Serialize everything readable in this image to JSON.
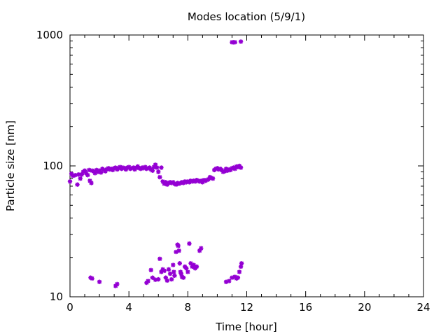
{
  "chart_data": {
    "type": "scatter",
    "title": "Modes location (5/9/1)",
    "xlabel": "Time [hour]",
    "ylabel": "Particle size [nm]",
    "xlim": [
      0,
      24
    ],
    "ylim": [
      10,
      1000
    ],
    "y_scale": "log",
    "grid": false,
    "legend": "none",
    "marker_color": "#9400d3",
    "x_ticks": [
      0,
      4,
      8,
      12,
      16,
      20,
      24
    ],
    "x_tick_labels": [
      "0",
      "4",
      "8",
      "12",
      "16",
      "20",
      "24"
    ],
    "y_ticks": [
      10,
      100,
      1000
    ],
    "y_tick_labels": [
      "10",
      "100",
      "1000"
    ],
    "series": [
      {
        "points": [
          [
            0.0,
            76
          ],
          [
            0.1,
            87
          ],
          [
            0.2,
            84
          ],
          [
            0.35,
            85
          ],
          [
            0.5,
            72
          ],
          [
            0.6,
            86
          ],
          [
            0.7,
            80
          ],
          [
            0.8,
            86
          ],
          [
            0.9,
            90
          ],
          [
            1.0,
            92
          ],
          [
            1.1,
            88
          ],
          [
            1.2,
            85
          ],
          [
            1.3,
            93
          ],
          [
            1.35,
            77
          ],
          [
            1.45,
            74
          ],
          [
            1.5,
            92
          ],
          [
            1.6,
            91
          ],
          [
            1.7,
            88
          ],
          [
            1.8,
            93
          ],
          [
            1.9,
            90
          ],
          [
            2.0,
            92
          ],
          [
            2.1,
            89
          ],
          [
            2.2,
            95
          ],
          [
            2.3,
            93
          ],
          [
            2.4,
            91
          ],
          [
            2.5,
            94
          ],
          [
            2.6,
            96
          ],
          [
            2.7,
            94
          ],
          [
            2.8,
            95
          ],
          [
            2.9,
            93
          ],
          [
            3.0,
            96
          ],
          [
            3.1,
            97
          ],
          [
            3.2,
            94
          ],
          [
            3.3,
            96
          ],
          [
            3.4,
            98
          ],
          [
            3.5,
            95
          ],
          [
            3.6,
            97
          ],
          [
            3.7,
            96
          ],
          [
            3.8,
            94
          ],
          [
            3.9,
            97
          ],
          [
            4.0,
            98
          ],
          [
            4.1,
            95
          ],
          [
            4.2,
            96
          ],
          [
            4.3,
            97
          ],
          [
            4.4,
            94
          ],
          [
            4.5,
            97
          ],
          [
            4.6,
            99
          ],
          [
            4.7,
            96
          ],
          [
            4.8,
            95
          ],
          [
            4.9,
            97
          ],
          [
            5.0,
            96
          ],
          [
            5.1,
            98
          ],
          [
            5.2,
            95
          ],
          [
            5.3,
            96
          ],
          [
            5.4,
            97
          ],
          [
            5.5,
            94
          ],
          [
            5.6,
            92
          ],
          [
            5.7,
            98
          ],
          [
            5.8,
            102
          ],
          [
            5.9,
            97
          ],
          [
            6.0,
            90
          ],
          [
            6.1,
            82
          ],
          [
            6.2,
            97
          ],
          [
            6.3,
            76
          ],
          [
            6.4,
            73
          ],
          [
            6.5,
            75
          ],
          [
            6.6,
            72
          ],
          [
            6.7,
            74
          ],
          [
            6.8,
            75
          ],
          [
            6.9,
            74
          ],
          [
            7.0,
            75
          ],
          [
            7.1,
            73
          ],
          [
            7.2,
            72
          ],
          [
            7.3,
            74
          ],
          [
            7.4,
            73
          ],
          [
            7.5,
            74
          ],
          [
            7.6,
            75
          ],
          [
            7.7,
            74
          ],
          [
            7.8,
            76
          ],
          [
            7.9,
            75
          ],
          [
            8.0,
            76
          ],
          [
            8.1,
            75
          ],
          [
            8.2,
            77
          ],
          [
            8.3,
            76
          ],
          [
            8.4,
            77
          ],
          [
            8.5,
            76
          ],
          [
            8.6,
            78
          ],
          [
            8.7,
            77
          ],
          [
            8.8,
            76
          ],
          [
            8.9,
            77
          ],
          [
            9.0,
            75
          ],
          [
            9.1,
            78
          ],
          [
            9.2,
            77
          ],
          [
            9.3,
            78
          ],
          [
            9.4,
            79
          ],
          [
            9.5,
            82
          ],
          [
            9.6,
            81
          ],
          [
            9.7,
            80
          ],
          [
            9.8,
            93
          ],
          [
            9.9,
            95
          ],
          [
            10.0,
            96
          ],
          [
            10.1,
            94
          ],
          [
            10.2,
            95
          ],
          [
            10.3,
            93
          ],
          [
            10.4,
            90
          ],
          [
            10.5,
            91
          ],
          [
            10.6,
            95
          ],
          [
            10.7,
            92
          ],
          [
            10.8,
            94
          ],
          [
            10.9,
            93
          ],
          [
            11.0,
            96
          ],
          [
            11.1,
            97
          ],
          [
            11.2,
            95
          ],
          [
            11.3,
            99
          ],
          [
            11.4,
            98
          ],
          [
            11.5,
            100
          ],
          [
            11.6,
            97
          ],
          [
            11.0,
            880
          ],
          [
            11.1,
            880
          ],
          [
            11.2,
            880
          ],
          [
            11.6,
            890
          ],
          [
            1.4,
            14
          ],
          [
            1.5,
            13.8
          ],
          [
            2.0,
            13
          ],
          [
            3.1,
            12.1
          ],
          [
            3.2,
            12.5
          ],
          [
            5.2,
            12.8
          ],
          [
            5.3,
            13.2
          ],
          [
            5.5,
            16
          ],
          [
            5.6,
            14
          ],
          [
            5.8,
            13.5
          ],
          [
            6.0,
            13.6
          ],
          [
            6.1,
            19.5
          ],
          [
            6.2,
            15.5
          ],
          [
            6.3,
            16.2
          ],
          [
            6.4,
            15.8
          ],
          [
            6.5,
            14
          ],
          [
            6.6,
            13.3
          ],
          [
            6.7,
            16.2
          ],
          [
            6.8,
            15
          ],
          [
            6.9,
            13.6
          ],
          [
            7.0,
            17.5
          ],
          [
            7.05,
            15.5
          ],
          [
            7.1,
            14.5
          ],
          [
            7.2,
            22
          ],
          [
            7.3,
            25
          ],
          [
            7.35,
            24.5
          ],
          [
            7.4,
            22.5
          ],
          [
            7.45,
            18
          ],
          [
            7.5,
            15.5
          ],
          [
            7.55,
            15
          ],
          [
            7.6,
            14.2
          ],
          [
            7.7,
            14
          ],
          [
            7.8,
            17
          ],
          [
            7.9,
            16.5
          ],
          [
            8.0,
            15.5
          ],
          [
            8.1,
            25.5
          ],
          [
            8.2,
            18
          ],
          [
            8.3,
            17
          ],
          [
            8.4,
            17.5
          ],
          [
            8.5,
            16.5
          ],
          [
            8.6,
            17
          ],
          [
            8.8,
            22.5
          ],
          [
            8.9,
            23.5
          ],
          [
            10.6,
            13
          ],
          [
            10.8,
            13.2
          ],
          [
            11.0,
            14
          ],
          [
            11.2,
            14.2
          ],
          [
            11.3,
            13.8
          ],
          [
            11.4,
            14
          ],
          [
            11.5,
            15.5
          ],
          [
            11.6,
            17
          ],
          [
            11.65,
            18
          ]
        ]
      }
    ]
  }
}
